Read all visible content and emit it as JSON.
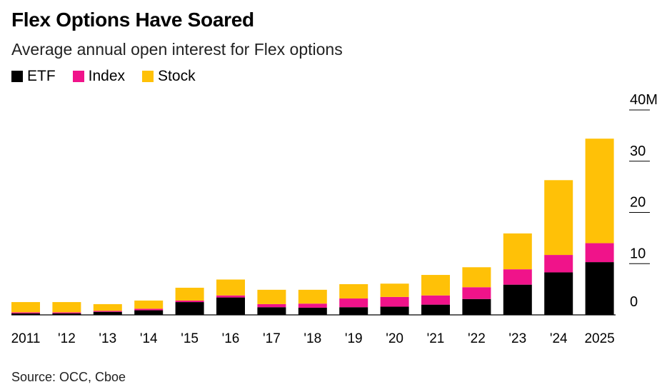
{
  "title": "Flex Options Have Soared",
  "subtitle": "Average annual open interest for Flex options",
  "source": "Source: OCC, Cboe",
  "legend": [
    {
      "label": "ETF",
      "color": "#000000"
    },
    {
      "label": "Index",
      "color": "#f0138a"
    },
    {
      "label": "Stock",
      "color": "#ffc107"
    }
  ],
  "chart_data": {
    "type": "bar",
    "stacked": true,
    "categories": [
      "2011",
      "'12",
      "'13",
      "'14",
      "'15",
      "'16",
      "'17",
      "'18",
      "'19",
      "'20",
      "'21",
      "'22",
      "'23",
      "'24",
      "2025"
    ],
    "series": [
      {
        "name": "ETF",
        "color": "#000000",
        "values": [
          0.3,
          0.3,
          0.6,
          0.9,
          2.5,
          3.4,
          1.5,
          1.4,
          1.5,
          1.6,
          2.0,
          3.1,
          5.9,
          8.3,
          10.3
        ]
      },
      {
        "name": "Index",
        "color": "#f0138a",
        "values": [
          0.2,
          0.2,
          0.2,
          0.3,
          0.3,
          0.4,
          0.6,
          0.8,
          1.7,
          1.9,
          1.8,
          2.3,
          3.0,
          3.4,
          3.7
        ]
      },
      {
        "name": "Stock",
        "color": "#ffc107",
        "values": [
          2.0,
          2.0,
          1.3,
          1.6,
          2.5,
          3.1,
          2.8,
          2.7,
          2.8,
          2.6,
          4.0,
          3.9,
          7.0,
          14.6,
          20.4
        ]
      }
    ],
    "y_ticks": [
      "40M",
      "30",
      "20",
      "10",
      "0"
    ],
    "y_tick_values": [
      40,
      30,
      20,
      10,
      0
    ],
    "ylim": [
      0,
      40
    ],
    "xlabel": "",
    "ylabel": "",
    "grid": false,
    "legend_position": "top-left",
    "y_axis_side": "right"
  }
}
